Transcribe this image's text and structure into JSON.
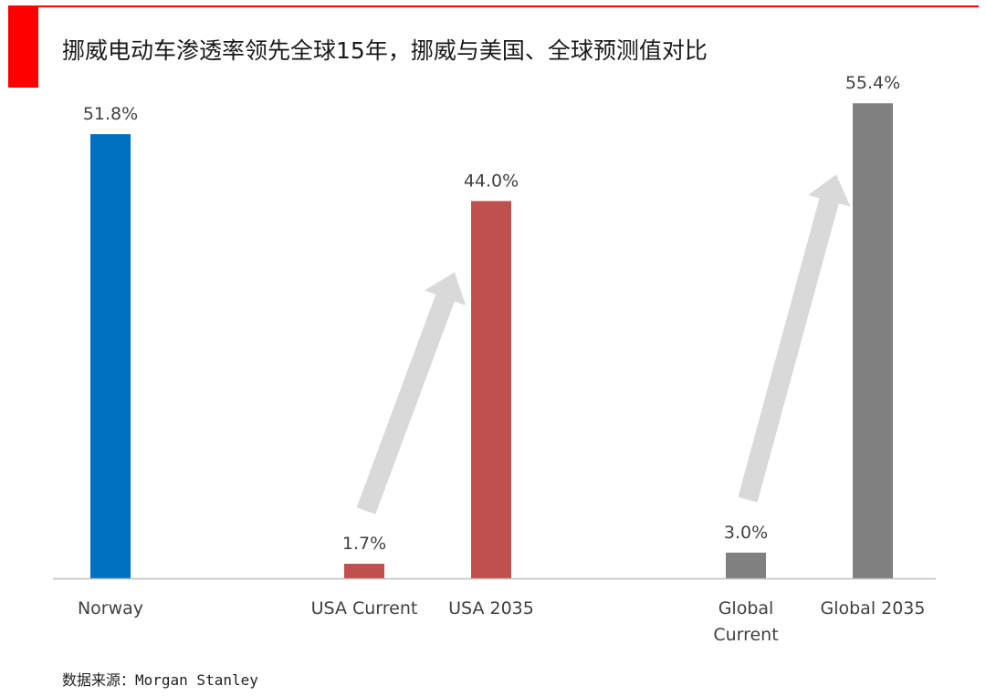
{
  "title": "挪威电动车渗透率领先全球15年，挪威与美国、全球预测值对比",
  "source": "数据来源：Morgan Stanley",
  "colors": {
    "accent": "#ff0000",
    "norway": "#0070c0",
    "usa": "#c0504d",
    "global": "#808080",
    "arrow": "#d9d9d9",
    "axis": "#bfbfbf",
    "label": "#404040"
  },
  "chart_data": {
    "type": "bar",
    "categories": [
      [
        "Norway"
      ],
      [
        "USA Current"
      ],
      [
        "USA 2035"
      ],
      [
        "Global",
        "Current"
      ],
      [
        "Global 2035"
      ]
    ],
    "values": [
      51.8,
      1.7,
      44.0,
      3.0,
      55.4
    ],
    "data_labels": [
      "51.8%",
      "1.7%",
      "44.0%",
      "3.0%",
      "55.4%"
    ],
    "groups": [
      "norway",
      "usa",
      "usa",
      "global",
      "global"
    ],
    "annotations": [
      {
        "type": "arrow",
        "from_category": 1,
        "to_category": 2
      },
      {
        "type": "arrow",
        "from_category": 3,
        "to_category": 4
      }
    ],
    "ylim": [
      0,
      60
    ],
    "grid": false,
    "legend": "none"
  }
}
